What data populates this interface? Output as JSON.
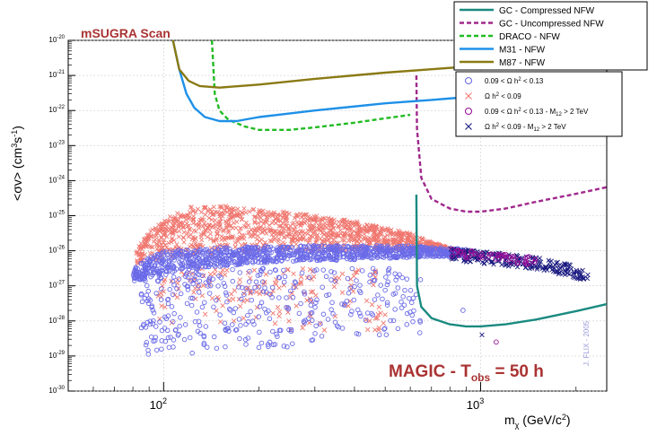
{
  "chart_data": {
    "type": "scatter",
    "title": "mSUGRA Scan",
    "annotation": "MAGIC - T_obs = 50 h",
    "annotation_parts": {
      "main": "MAGIC - T",
      "sub": "obs",
      "tail": " = 50 h"
    },
    "credit": "J. FLIX - 2005",
    "xlabel": "m_χ (GeV/c²)",
    "xlabel_parts": {
      "main": "m",
      "sub": "χ",
      "tail": " (GeV/c",
      "sup": "2",
      "end": ")"
    },
    "ylabel": "<σv> (cm³s⁻¹)",
    "ylabel_parts": {
      "main": "<σv> (cm",
      "sup1": "3",
      "mid": "s",
      "sup2": "-1",
      "end": ")"
    },
    "x_scale": "log",
    "y_scale": "log",
    "xlim": [
      50,
      2500
    ],
    "ylim": [
      1e-30,
      1e-20
    ],
    "x_ticks": [
      {
        "value": 100,
        "base": "10",
        "exp": "2"
      },
      {
        "value": 1000,
        "base": "10",
        "exp": "3"
      }
    ],
    "y_ticks": [
      {
        "value": 1e-20,
        "base": "10",
        "exp": "-20"
      },
      {
        "value": 1e-21,
        "base": "10",
        "exp": "-21"
      },
      {
        "value": 1e-22,
        "base": "10",
        "exp": "-22"
      },
      {
        "value": 1e-23,
        "base": "10",
        "exp": "-23"
      },
      {
        "value": 1e-24,
        "base": "10",
        "exp": "-24"
      },
      {
        "value": 1e-25,
        "base": "10",
        "exp": "-25"
      },
      {
        "value": 1e-26,
        "base": "10",
        "exp": "-26"
      },
      {
        "value": 1e-27,
        "base": "10",
        "exp": "-27"
      },
      {
        "value": 1e-28,
        "base": "10",
        "exp": "-28"
      },
      {
        "value": 1e-29,
        "base": "10",
        "exp": "-29"
      },
      {
        "value": 1e-30,
        "base": "10",
        "exp": "-30"
      }
    ],
    "grid": true,
    "legend_placement": "top-right",
    "series": [
      {
        "name": "GC - Compressed NFW",
        "color": "#1a8a80",
        "style": "solid",
        "points": [
          [
            627,
            4e-25
          ],
          [
            630,
            1e-27
          ],
          [
            650,
            2.5e-28
          ],
          [
            700,
            1.2e-28
          ],
          [
            800,
            8e-29
          ],
          [
            900,
            7e-29
          ],
          [
            1000,
            7e-29
          ],
          [
            1200,
            8e-29
          ],
          [
            1500,
            1.1e-28
          ],
          [
            2000,
            1.9e-28
          ],
          [
            2500,
            3e-28
          ]
        ]
      },
      {
        "name": "GC - Uncompressed NFW",
        "color": "#a0288c",
        "style": "dashed",
        "points": [
          [
            627,
            1e-21
          ],
          [
            630,
            3e-23
          ],
          [
            650,
            1.2e-24
          ],
          [
            700,
            3e-25
          ],
          [
            800,
            1.6e-25
          ],
          [
            900,
            1.3e-25
          ],
          [
            1000,
            1.3e-25
          ],
          [
            1200,
            1.6e-25
          ],
          [
            1500,
            2.5e-25
          ],
          [
            2000,
            4.2e-25
          ],
          [
            2500,
            6.5e-25
          ]
        ]
      },
      {
        "name": "DRACO - NFW",
        "color": "#22bb22",
        "style": "dashed",
        "points": [
          [
            142,
            1e-20
          ],
          [
            145,
            3e-22
          ],
          [
            150,
            1e-22
          ],
          [
            160,
            5.5e-23
          ],
          [
            180,
            3.5e-23
          ],
          [
            200,
            2.8e-23
          ],
          [
            250,
            2.8e-23
          ],
          [
            300,
            3.3e-23
          ],
          [
            400,
            4.5e-23
          ],
          [
            500,
            6e-23
          ],
          [
            600,
            7.5e-23
          ]
        ]
      },
      {
        "name": "M31 - NFW",
        "color": "#1e90e8",
        "style": "solid",
        "points": [
          [
            107,
            1e-20
          ],
          [
            112,
            1.5e-21
          ],
          [
            118,
            3e-22
          ],
          [
            125,
            1.2e-22
          ],
          [
            135,
            6.5e-23
          ],
          [
            150,
            5e-23
          ],
          [
            170,
            5e-23
          ],
          [
            200,
            6.5e-23
          ],
          [
            300,
            1e-22
          ],
          [
            500,
            1.6e-22
          ],
          [
            700,
            2e-22
          ],
          [
            1000,
            2.6e-22
          ],
          [
            1500,
            3.3e-22
          ],
          [
            2500,
            4.2e-22
          ]
        ]
      },
      {
        "name": "M87 - NFW",
        "color": "#8a7a14",
        "style": "solid",
        "points": [
          [
            107,
            1e-20
          ],
          [
            112,
            1.5e-21
          ],
          [
            120,
            7e-22
          ],
          [
            130,
            5e-22
          ],
          [
            150,
            4.5e-22
          ],
          [
            200,
            5.5e-22
          ],
          [
            300,
            8e-22
          ],
          [
            500,
            1.2e-21
          ],
          [
            700,
            1.5e-21
          ],
          [
            1000,
            1.9e-21
          ],
          [
            1500,
            2.3e-21
          ],
          [
            2500,
            3e-21
          ]
        ]
      }
    ],
    "scatter_series": [
      {
        "name": "0.09 < Ω h² < 0.13",
        "legend": {
          "main": "0.09 < Ω h",
          "sup": "2",
          "tail": " < 0.13"
        },
        "marker": "circle",
        "color": "#6b6be8"
      },
      {
        "name": "Ω h² < 0.09",
        "legend": {
          "main": "Ω h",
          "sup": "2",
          "tail": " < 0.09"
        },
        "marker": "x",
        "color": "#f07870"
      },
      {
        "name": "0.09 < Ω h² < 0.13 - M12 > 2 TeV",
        "legend": {
          "main": "0.09 < Ω h",
          "sup": "2",
          "tail": " < 0.13 - M",
          "sub": "12",
          "end": " > 2 TeV"
        },
        "marker": "circle",
        "color": "#991199"
      },
      {
        "name": "Ω h² < 0.09 - M12 > 2 TeV",
        "legend": {
          "main": "Ω h",
          "sup": "2",
          "tail": " < 0.09 - M",
          "sub": "12",
          "end": " > 2 TeV"
        },
        "marker": "x",
        "color": "#1a1a80"
      }
    ],
    "scatter_regions": {
      "relic_band": {
        "series": 0,
        "x_range": [
          80,
          900
        ],
        "upper_log": [
          [
            80,
            -26.5
          ],
          [
            90,
            -26.2
          ],
          [
            100,
            -26.0
          ],
          [
            150,
            -25.9
          ],
          [
            300,
            -25.85
          ],
          [
            600,
            -25.85
          ],
          [
            900,
            -25.95
          ]
        ],
        "lower_log": [
          [
            80,
            -26.9
          ],
          [
            100,
            -26.6
          ],
          [
            200,
            -26.35
          ],
          [
            600,
            -26.2
          ],
          [
            900,
            -26.15
          ]
        ]
      },
      "pink_cloud": {
        "series": 1,
        "upper_log": [
          [
            82,
            -25.8
          ],
          [
            100,
            -25.1
          ],
          [
            120,
            -24.75
          ],
          [
            150,
            -24.7
          ],
          [
            250,
            -24.9
          ],
          [
            400,
            -25.15
          ],
          [
            600,
            -25.5
          ],
          [
            700,
            -25.75
          ],
          [
            900,
            -26.05
          ]
        ],
        "lower_log": [
          [
            82,
            -26.4
          ],
          [
            100,
            -26.2
          ],
          [
            200,
            -26.05
          ],
          [
            400,
            -26.0
          ],
          [
            700,
            -26.0
          ],
          [
            900,
            -26.1
          ]
        ]
      },
      "sparse_blue": {
        "series": 0,
        "x_range": [
          85,
          650
        ],
        "y_log_range": [
          -29.0,
          -26.5
        ]
      },
      "sparse_pink": {
        "series": 1,
        "x_range": [
          95,
          500
        ],
        "y_log_range": [
          -28.3,
          -26.5
        ]
      },
      "heavy_navy": {
        "series": 3,
        "x_range": [
          800,
          2200
        ],
        "center_log": [
          [
            800,
            -26.1
          ],
          [
            1500,
            -26.35
          ],
          [
            2200,
            -26.7
          ]
        ]
      },
      "heavy_purple": {
        "series": 2,
        "x_range": [
          800,
          1500
        ],
        "center_log": [
          [
            800,
            -26.05
          ],
          [
            1500,
            -26.3
          ]
        ]
      },
      "outliers": [
        {
          "series": 3,
          "x": 1010,
          "y": 4e-29
        },
        {
          "series": 2,
          "x": 1120,
          "y": 2.5e-29
        },
        {
          "series": 0,
          "x": 880,
          "y": 2e-28
        }
      ]
    }
  }
}
